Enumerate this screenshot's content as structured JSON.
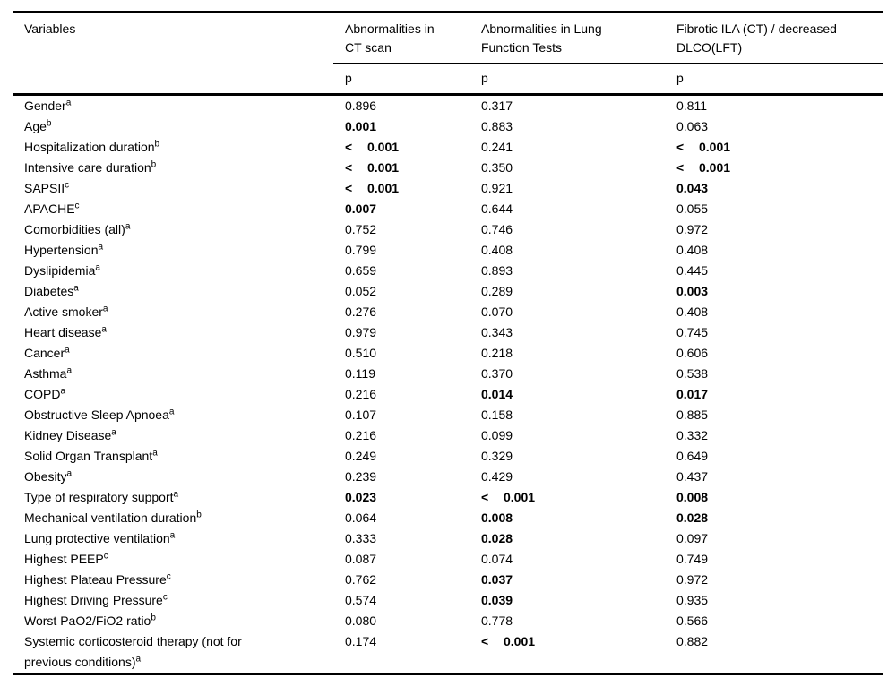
{
  "page": {
    "background": "#ffffff",
    "text_color": "#000000",
    "rule_color": "#000000"
  },
  "table": {
    "columns": [
      {
        "label": "Variables",
        "sub": ""
      },
      {
        "label": "Abnormalities in CT scan",
        "sub": "p"
      },
      {
        "label": "Abnormalities in Lung Function Tests",
        "sub": "p"
      },
      {
        "label": "Fibrotic ILA (CT) / decreased DLCO(LFT)",
        "sub": "p"
      }
    ],
    "rows": [
      {
        "variable": "Gender",
        "sup": "a",
        "cells": [
          {
            "v": "0.896",
            "b": false
          },
          {
            "v": "0.317",
            "b": false
          },
          {
            "v": "0.811",
            "b": false
          }
        ]
      },
      {
        "variable": "Age",
        "sup": "b",
        "cells": [
          {
            "v": "0.001",
            "b": true
          },
          {
            "v": "0.883",
            "b": false
          },
          {
            "v": "0.063",
            "b": false
          }
        ]
      },
      {
        "variable": "Hospitalization duration",
        "sup": "b",
        "cells": [
          {
            "v": "< 0.001",
            "b": true
          },
          {
            "v": "0.241",
            "b": false
          },
          {
            "v": "< 0.001",
            "b": true
          }
        ]
      },
      {
        "variable": "Intensive care duration",
        "sup": "b",
        "cells": [
          {
            "v": "< 0.001",
            "b": true
          },
          {
            "v": "0.350",
            "b": false
          },
          {
            "v": "< 0.001",
            "b": true
          }
        ]
      },
      {
        "variable": "SAPSII",
        "sup": "c",
        "cells": [
          {
            "v": "< 0.001",
            "b": true
          },
          {
            "v": "0.921",
            "b": false
          },
          {
            "v": "0.043",
            "b": true
          }
        ]
      },
      {
        "variable": "APACHE",
        "sup": "c",
        "cells": [
          {
            "v": "0.007",
            "b": true
          },
          {
            "v": "0.644",
            "b": false
          },
          {
            "v": "0.055",
            "b": false
          }
        ]
      },
      {
        "variable": "Comorbidities (all)",
        "sup": "a",
        "cells": [
          {
            "v": "0.752",
            "b": false
          },
          {
            "v": "0.746",
            "b": false
          },
          {
            "v": "0.972",
            "b": false
          }
        ]
      },
      {
        "variable": "Hypertension",
        "sup": "a",
        "cells": [
          {
            "v": "0.799",
            "b": false
          },
          {
            "v": "0.408",
            "b": false
          },
          {
            "v": "0.408",
            "b": false
          }
        ]
      },
      {
        "variable": "Dyslipidemia",
        "sup": "a",
        "cells": [
          {
            "v": "0.659",
            "b": false
          },
          {
            "v": "0.893",
            "b": false
          },
          {
            "v": "0.445",
            "b": false
          }
        ]
      },
      {
        "variable": "Diabetes",
        "sup": "a",
        "cells": [
          {
            "v": "0.052",
            "b": false
          },
          {
            "v": "0.289",
            "b": false
          },
          {
            "v": "0.003",
            "b": true
          }
        ]
      },
      {
        "variable": "Active smoker",
        "sup": "a",
        "cells": [
          {
            "v": "0.276",
            "b": false
          },
          {
            "v": "0.070",
            "b": false
          },
          {
            "v": "0.408",
            "b": false
          }
        ]
      },
      {
        "variable": "Heart disease",
        "sup": "a",
        "cells": [
          {
            "v": "0.979",
            "b": false
          },
          {
            "v": "0.343",
            "b": false
          },
          {
            "v": "0.745",
            "b": false
          }
        ]
      },
      {
        "variable": "Cancer",
        "sup": "a",
        "cells": [
          {
            "v": "0.510",
            "b": false
          },
          {
            "v": "0.218",
            "b": false
          },
          {
            "v": "0.606",
            "b": false
          }
        ]
      },
      {
        "variable": "Asthma",
        "sup": "a",
        "cells": [
          {
            "v": "0.119",
            "b": false
          },
          {
            "v": "0.370",
            "b": false
          },
          {
            "v": "0.538",
            "b": false
          }
        ]
      },
      {
        "variable": "COPD",
        "sup": "a",
        "cells": [
          {
            "v": "0.216",
            "b": false
          },
          {
            "v": "0.014",
            "b": true
          },
          {
            "v": "0.017",
            "b": true
          }
        ]
      },
      {
        "variable": "Obstructive Sleep Apnoea",
        "sup": "a",
        "cells": [
          {
            "v": "0.107",
            "b": false
          },
          {
            "v": "0.158",
            "b": false
          },
          {
            "v": "0.885",
            "b": false
          }
        ]
      },
      {
        "variable": "Kidney Disease",
        "sup": "a",
        "cells": [
          {
            "v": "0.216",
            "b": false
          },
          {
            "v": "0.099",
            "b": false
          },
          {
            "v": "0.332",
            "b": false
          }
        ]
      },
      {
        "variable": "Solid Organ Transplant",
        "sup": "a",
        "cells": [
          {
            "v": "0.249",
            "b": false
          },
          {
            "v": "0.329",
            "b": false
          },
          {
            "v": "0.649",
            "b": false
          }
        ]
      },
      {
        "variable": "Obesity",
        "sup": "a",
        "cells": [
          {
            "v": "0.239",
            "b": false
          },
          {
            "v": "0.429",
            "b": false
          },
          {
            "v": "0.437",
            "b": false
          }
        ]
      },
      {
        "variable": "Type of respiratory support",
        "sup": "a",
        "cells": [
          {
            "v": "0.023",
            "b": true
          },
          {
            "v": "< 0.001",
            "b": true
          },
          {
            "v": "0.008",
            "b": true
          }
        ]
      },
      {
        "variable": "Mechanical ventilation duration",
        "sup": "b",
        "cells": [
          {
            "v": "0.064",
            "b": false
          },
          {
            "v": "0.008",
            "b": true
          },
          {
            "v": "0.028",
            "b": true
          }
        ]
      },
      {
        "variable": "Lung protective ventilation",
        "sup": "a",
        "cells": [
          {
            "v": "0.333",
            "b": false
          },
          {
            "v": "0.028",
            "b": true
          },
          {
            "v": "0.097",
            "b": false
          }
        ]
      },
      {
        "variable": "Highest PEEP",
        "sup": "c",
        "cells": [
          {
            "v": "0.087",
            "b": false
          },
          {
            "v": "0.074",
            "b": false
          },
          {
            "v": "0.749",
            "b": false
          }
        ]
      },
      {
        "variable": "Highest Plateau Pressure",
        "sup": "c",
        "cells": [
          {
            "v": "0.762",
            "b": false
          },
          {
            "v": "0.037",
            "b": true
          },
          {
            "v": "0.972",
            "b": false
          }
        ]
      },
      {
        "variable": "Highest Driving Pressure",
        "sup": "c",
        "cells": [
          {
            "v": "0.574",
            "b": false
          },
          {
            "v": "0.039",
            "b": true
          },
          {
            "v": "0.935",
            "b": false
          }
        ]
      },
      {
        "variable": "Worst PaO2/FiO2 ratio",
        "sup": "b",
        "cells": [
          {
            "v": "0.080",
            "b": false
          },
          {
            "v": "0.778",
            "b": false
          },
          {
            "v": "0.566",
            "b": false
          }
        ]
      },
      {
        "variable": "Systemic corticosteroid therapy (not for previous conditions)",
        "sup": "a",
        "cells": [
          {
            "v": "0.174",
            "b": false
          },
          {
            "v": "< 0.001",
            "b": true
          },
          {
            "v": "0.882",
            "b": false
          }
        ]
      }
    ]
  }
}
